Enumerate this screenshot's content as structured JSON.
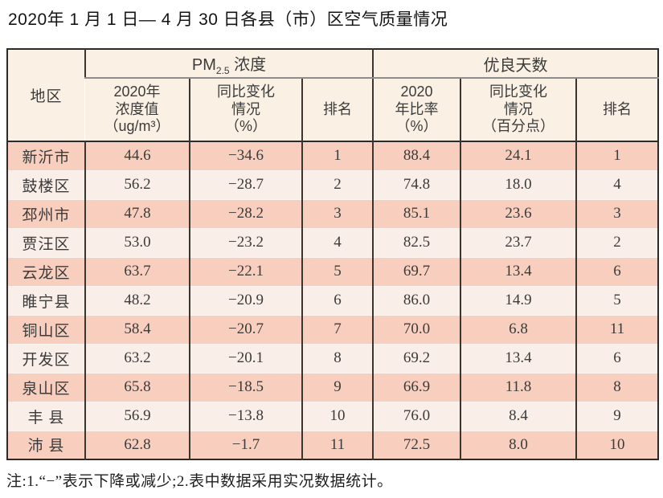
{
  "title": "2020年 1 月 1 日— 4 月 30 日各县（市）区空气质量情况",
  "table": {
    "region_header": "地区",
    "pm_group": {
      "main": "PM",
      "sub": "2.5",
      "rest": " 浓度"
    },
    "good_group": "优良天数",
    "sub_headers": [
      "2020年\n浓度值\n（ug/m³）",
      "同比变化\n情况\n（%）",
      "排名",
      "2020\n年比率\n（%）",
      "同比变化\n情况\n（百分点）",
      "排名"
    ],
    "rows": [
      [
        "新沂市",
        "44.6",
        "−34.6",
        "1",
        "88.4",
        "24.1",
        "1"
      ],
      [
        "鼓楼区",
        "56.2",
        "−28.7",
        "2",
        "74.8",
        "18.0",
        "4"
      ],
      [
        "邳州市",
        "47.8",
        "−28.2",
        "3",
        "85.1",
        "23.6",
        "3"
      ],
      [
        "贾汪区",
        "53.0",
        "−23.2",
        "4",
        "82.5",
        "23.7",
        "2"
      ],
      [
        "云龙区",
        "63.7",
        "−22.1",
        "5",
        "69.7",
        "13.4",
        "6"
      ],
      [
        "睢宁县",
        "48.2",
        "−20.9",
        "6",
        "86.0",
        "14.9",
        "5"
      ],
      [
        "铜山区",
        "58.4",
        "−20.7",
        "7",
        "70.0",
        "6.8",
        "11"
      ],
      [
        "开发区",
        "63.2",
        "−20.1",
        "8",
        "69.2",
        "13.4",
        "6"
      ],
      [
        "泉山区",
        "65.8",
        "−18.5",
        "9",
        "66.9",
        "11.8",
        "8"
      ],
      [
        "丰 县",
        "56.9",
        "−13.8",
        "10",
        "76.0",
        "8.4",
        "9"
      ],
      [
        "沛 县",
        "62.8",
        "−1.7",
        "11",
        "72.5",
        "8.0",
        "10"
      ]
    ]
  },
  "note": "注:1.“−”表示下降或减少;2.表中数据采用实况数据统计。",
  "colors": {
    "row_odd": "#f8cfbe",
    "row_even": "#faefe8",
    "header_bg": "#faf1e4",
    "outer_border": "#2b2b2b",
    "inner_border": "#3a352f",
    "group_underline": "#8d8d8d",
    "text": "#3b3b3b"
  }
}
